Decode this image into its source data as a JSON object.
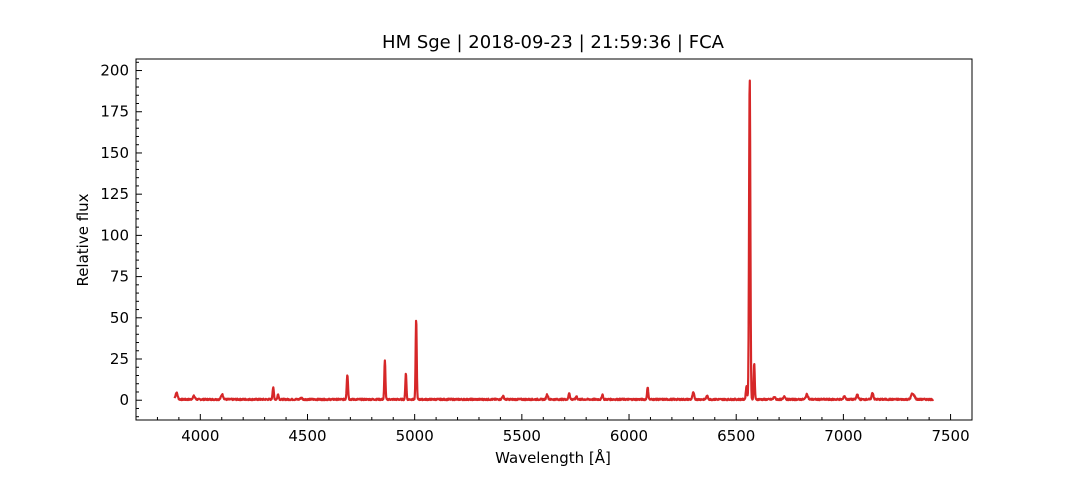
{
  "chart_data": {
    "type": "line",
    "title": "HM Sge | 2018-09-23 | 21:59:36 | FCA",
    "xlabel": "Wavelength [Å]",
    "ylabel": "Relative flux",
    "xlim": [
      3700,
      7600
    ],
    "ylim": [
      -12,
      207
    ],
    "xticks": [
      4000,
      4500,
      5000,
      5500,
      6000,
      6500,
      7000,
      7500
    ],
    "yticks": [
      0,
      25,
      50,
      75,
      100,
      125,
      150,
      175,
      200
    ],
    "grid": false,
    "line_color": "#d62728",
    "series": [
      {
        "color": "#d62728",
        "continuum": 0.5,
        "x_range": [
          3880,
          7420
        ],
        "lines": [
          {
            "center": 3889,
            "peak": 4,
            "width": 5
          },
          {
            "center": 3970,
            "peak": 2,
            "width": 5
          },
          {
            "center": 4102,
            "peak": 3,
            "width": 5
          },
          {
            "center": 4340,
            "peak": 7,
            "width": 3
          },
          {
            "center": 4363,
            "peak": 3,
            "width": 3
          },
          {
            "center": 4471,
            "peak": 1,
            "width": 4
          },
          {
            "center": 4686,
            "peak": 15,
            "width": 3
          },
          {
            "center": 4861,
            "peak": 24,
            "width": 2.5
          },
          {
            "center": 4959,
            "peak": 16,
            "width": 2.5
          },
          {
            "center": 5007,
            "peak": 49,
            "width": 2.5
          },
          {
            "center": 5412,
            "peak": 2,
            "width": 4
          },
          {
            "center": 5618,
            "peak": 3,
            "width": 4
          },
          {
            "center": 5721,
            "peak": 4,
            "width": 3
          },
          {
            "center": 5755,
            "peak": 2,
            "width": 3
          },
          {
            "center": 5876,
            "peak": 3,
            "width": 3
          },
          {
            "center": 6087,
            "peak": 7,
            "width": 3
          },
          {
            "center": 6300,
            "peak": 4,
            "width": 4
          },
          {
            "center": 6364,
            "peak": 2,
            "width": 4
          },
          {
            "center": 6563,
            "peak": 196,
            "width": 3
          },
          {
            "center": 6584,
            "peak": 22,
            "width": 2.5
          },
          {
            "center": 6548,
            "peak": 8,
            "width": 3
          },
          {
            "center": 6678,
            "peak": 1.5,
            "width": 4
          },
          {
            "center": 6725,
            "peak": 2,
            "width": 4
          },
          {
            "center": 6830,
            "peak": 3,
            "width": 5
          },
          {
            "center": 7005,
            "peak": 2,
            "width": 4
          },
          {
            "center": 7065,
            "peak": 3,
            "width": 4
          },
          {
            "center": 7136,
            "peak": 4,
            "width": 4
          },
          {
            "center": 7320,
            "peak": 3,
            "width": 5
          },
          {
            "center": 7330,
            "peak": 2,
            "width": 5
          }
        ]
      }
    ]
  }
}
